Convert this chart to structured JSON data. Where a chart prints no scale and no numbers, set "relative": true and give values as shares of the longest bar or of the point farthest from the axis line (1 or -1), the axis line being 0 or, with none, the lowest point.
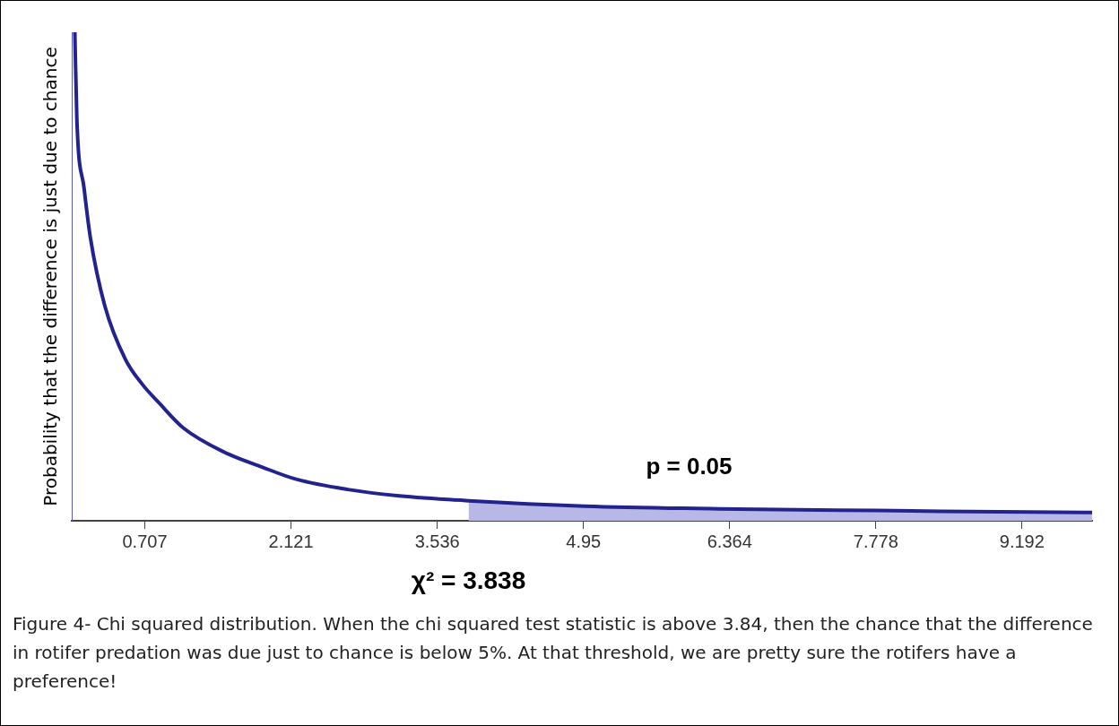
{
  "chart_data": {
    "type": "line",
    "relative": true,
    "ylabel": "Probability that the difference is just due to chance",
    "xlim": [
      0,
      9.87
    ],
    "xticks": [
      0.707,
      2.121,
      3.536,
      4.95,
      6.364,
      7.778,
      9.192
    ],
    "grid": false,
    "legend": false,
    "marker": "none",
    "series": [
      {
        "type": "area",
        "color": "#b8b8e6",
        "x": [
          3.838,
          4.96,
          6.44,
          7.78,
          9.81,
          9.87
        ],
        "values": [
          0.041,
          0.03,
          0.024,
          0.021,
          0.017,
          0.017
        ]
      },
      {
        "type": "line",
        "color": "#23238e",
        "x": [
          0.03,
          0.05,
          0.12,
          0.18,
          0.32,
          0.52,
          0.68,
          0.85,
          1.08,
          1.48,
          1.84,
          2.17,
          2.67,
          3.17,
          3.838,
          4.96,
          6.44,
          7.78,
          9.81,
          9.87
        ],
        "values": [
          1,
          0.82,
          0.68,
          0.58,
          0.44,
          0.33,
          0.28,
          0.24,
          0.19,
          0.14,
          0.11,
          0.085,
          0.064,
          0.051,
          0.041,
          0.03,
          0.024,
          0.021,
          0.017,
          0.017
        ]
      }
    ],
    "annotations": [
      "p = 0.05",
      "χ² = 3.838",
      "Figure 4- Chi squared distribution. When the chi squared test statistic is above 3.84, then the chance that the difference in rotifer predation was due just to chance is below 5%. At that threshold, we are pretty sure the rotifers have a preference!"
    ]
  }
}
